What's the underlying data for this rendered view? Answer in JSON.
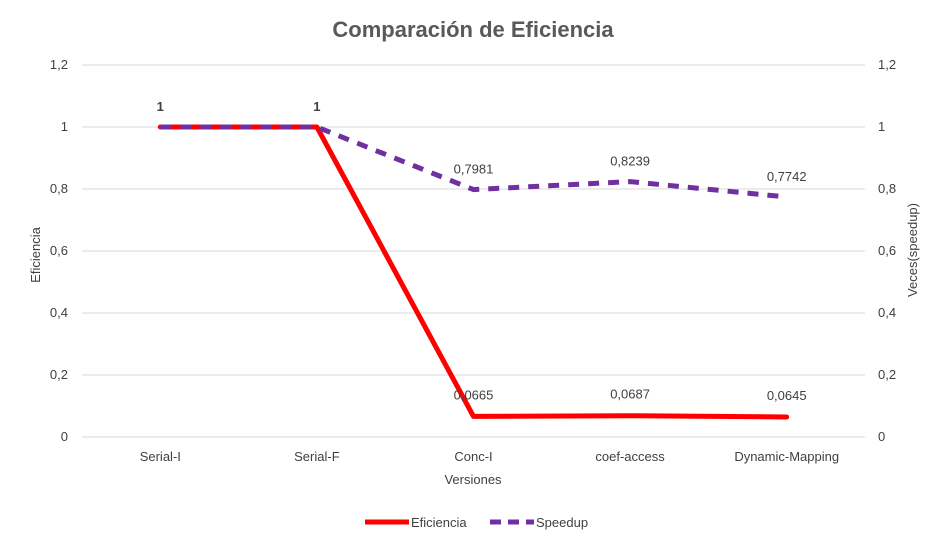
{
  "chart_data": {
    "type": "line",
    "title": "Comparación de Eficiencia",
    "xlabel": "Versiones",
    "ylabel": "Eficiencia",
    "y2label": "Veces(speedup)",
    "categories": [
      "Serial-I",
      "Serial-F",
      "Conc-I",
      "coef-access",
      "Dynamic-Mapping"
    ],
    "ylim": [
      0,
      1.2
    ],
    "y2lim": [
      0,
      1.2
    ],
    "yticks": [
      "0",
      "0,2",
      "0,4",
      "0,6",
      "0,8",
      "1",
      "1,2"
    ],
    "grid": true,
    "legend_position": "bottom",
    "series": [
      {
        "name": "Eficiencia",
        "axis": "left",
        "color": "#FF0000",
        "style": "solid",
        "values": [
          1,
          1,
          0.0665,
          0.0687,
          0.0645
        ],
        "labels": [
          "1",
          "1",
          "0,0665",
          "0,0687",
          "0,0645"
        ]
      },
      {
        "name": "Speedup",
        "axis": "right",
        "color": "#7030A0",
        "style": "dashed",
        "values": [
          1,
          1,
          0.7981,
          0.8239,
          0.7742
        ],
        "labels": [
          "",
          "",
          "0,7981",
          "0,8239",
          "0,7742"
        ]
      }
    ]
  }
}
